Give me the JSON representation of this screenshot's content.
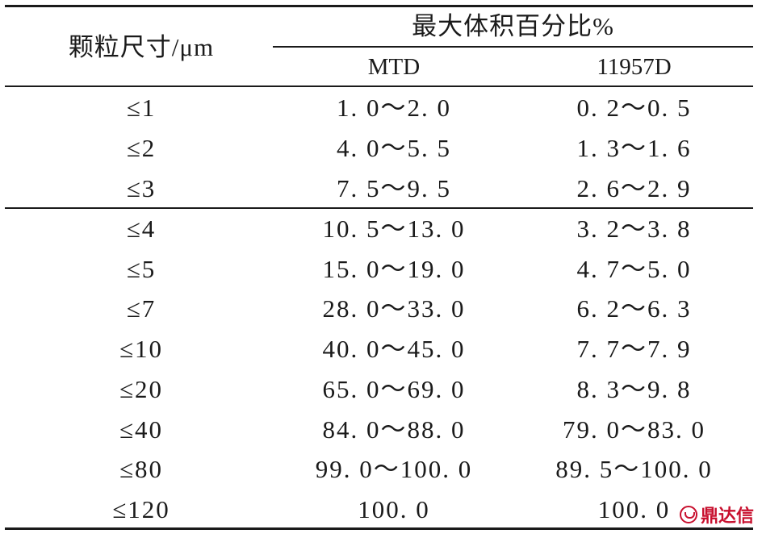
{
  "table": {
    "header": {
      "particle_size": "颗粒尺寸/μm",
      "group": "最大体积百分比%",
      "col_mtd": "MTD",
      "col_11957d": "11957D"
    },
    "rows": [
      {
        "size": "≤1",
        "mtd": "1. 0～2. 0",
        "d11957": "0. 2～0. 5"
      },
      {
        "size": "≤2",
        "mtd": "4. 0～5. 5",
        "d11957": "1. 3～1. 6"
      },
      {
        "size": "≤3",
        "mtd": "7. 5～9. 5",
        "d11957": "2. 6～2. 9"
      },
      {
        "size": "≤4",
        "mtd": "10. 5～13. 0",
        "d11957": "3. 2～3. 8"
      },
      {
        "size": "≤5",
        "mtd": "15. 0～19. 0",
        "d11957": "4. 7～5. 0"
      },
      {
        "size": "≤7",
        "mtd": "28. 0～33. 0",
        "d11957": "6. 2～6. 3"
      },
      {
        "size": "≤10",
        "mtd": "40. 0～45. 0",
        "d11957": "7. 7～7. 9"
      },
      {
        "size": "≤20",
        "mtd": "65. 0～69. 0",
        "d11957": "8. 3～9. 8"
      },
      {
        "size": "≤40",
        "mtd": "84. 0～88. 0",
        "d11957": "79. 0～83. 0"
      },
      {
        "size": "≤80",
        "mtd": "99. 0～100. 0",
        "d11957": "89. 5～100. 0"
      },
      {
        "size": "≤120",
        "mtd": "100. 0",
        "d11957": "100. 0"
      }
    ]
  },
  "watermark": {
    "text": "鼎达信"
  }
}
